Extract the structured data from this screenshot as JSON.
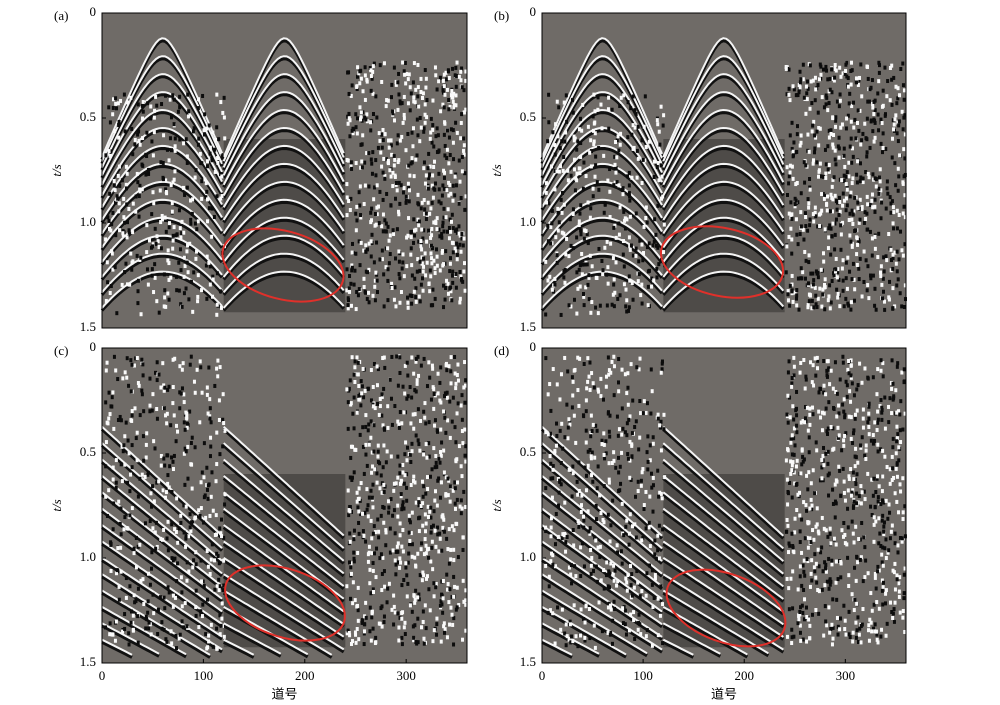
{
  "chart_data": [
    {
      "type": "image",
      "panel_label": "(a)",
      "ylabel": "t/s",
      "ylim": [
        0,
        1.5
      ],
      "y_inverted": true,
      "yticks": [
        0,
        0.5,
        {
          "value": 1,
          "label": "1.0"
        },
        1.5
      ],
      "xlim": [
        0,
        360
      ]
    },
    {
      "type": "image",
      "panel_label": "(b)",
      "ylabel": "t/s",
      "ylim": [
        0,
        1.5
      ],
      "y_inverted": true,
      "yticks": [
        0,
        0.5,
        {
          "value": 1,
          "label": "1.0"
        },
        1.5
      ],
      "xlim": [
        0,
        360
      ]
    },
    {
      "type": "image",
      "panel_label": "(c)",
      "ylabel": "t/s",
      "xlabel": "道号",
      "ylim": [
        0,
        1.5
      ],
      "y_inverted": true,
      "yticks": [
        0,
        0.5,
        {
          "value": 1,
          "label": "1.0"
        },
        1.5
      ],
      "xlim": [
        0,
        360
      ],
      "xticks": [
        0,
        100,
        200,
        300
      ]
    },
    {
      "type": "image",
      "panel_label": "(d)",
      "ylabel": "t/s",
      "xlabel": "道号",
      "ylim": [
        0,
        1.5
      ],
      "y_inverted": true,
      "yticks": [
        0,
        0.5,
        {
          "value": 1,
          "label": "1.0"
        },
        1.5
      ],
      "xlim": [
        0,
        360
      ],
      "xticks": [
        0,
        100,
        200,
        300
      ]
    }
  ]
}
